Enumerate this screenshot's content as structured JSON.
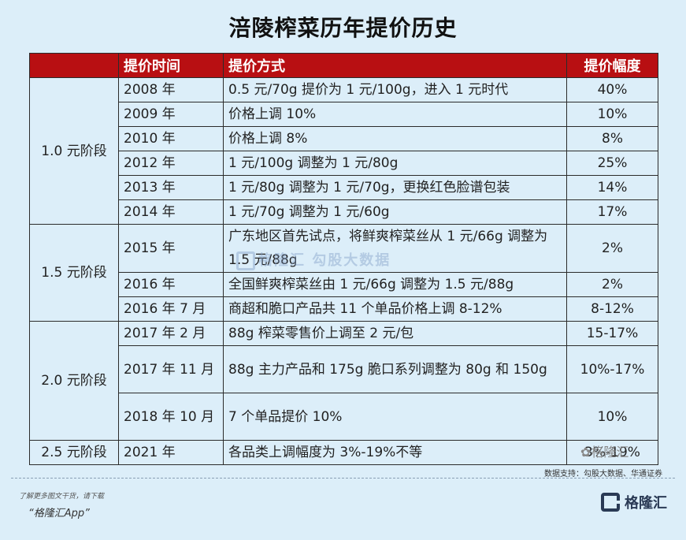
{
  "title": "涪陵榨菜历年提价历史",
  "headers": {
    "stage": "",
    "time": "提价时间",
    "method": "提价方式",
    "range": "提价幅度"
  },
  "stages": [
    {
      "label": "1.0 元阶段",
      "rows": [
        {
          "time": "2008 年",
          "method": "0.5 元/70g 提价为 1 元/100g，进入 1 元时代",
          "range": "40%"
        },
        {
          "time": "2009 年",
          "method": "价格上调 10%",
          "range": "10%"
        },
        {
          "time": "2010 年",
          "method": "价格上调 8%",
          "range": "8%"
        },
        {
          "time": "2012 年",
          "method": "1 元/100g 调整为 1 元/80g",
          "range": "25%"
        },
        {
          "time": "2013 年",
          "method": "1 元/80g 调整为 1 元/70g，更换红色脸谱包装",
          "range": "14%"
        },
        {
          "time": "2014 年",
          "method": "1 元/70g 调整为 1 元/60g",
          "range": "17%"
        }
      ]
    },
    {
      "label": "1.5 元阶段",
      "rows": [
        {
          "time": "2015 年",
          "method": "广东地区首先试点，将鲜爽榨菜丝从 1 元/66g 调整为 1.5 元/88g",
          "range": "2%"
        },
        {
          "time": "2016 年",
          "method": "全国鲜爽榨菜丝由 1 元/66g 调整为 1.5 元/88g",
          "range": "2%"
        },
        {
          "time": "2016 年 7 月",
          "method": "商超和脆口产品共 11 个单品价格上调 8-12%",
          "range": "8-12%"
        }
      ]
    },
    {
      "label": "2.0 元阶段",
      "rows": [
        {
          "time": "2017 年 2 月",
          "method": "88g 榨菜零售价上调至 2 元/包",
          "range": "15-17%"
        },
        {
          "time": "2017 年 11 月",
          "method": "88g 主力产品和 175g 脆口系列调整为 80g 和 150g",
          "range": "10%-17%"
        },
        {
          "time": "2018 年 10 月",
          "method": "7 个单品提价 10%",
          "range": "10%"
        }
      ]
    },
    {
      "label": "2.5 元阶段",
      "rows": [
        {
          "time": "2021 年",
          "method": "各品类上调幅度为 3%-19%不等",
          "range": "3%-19%"
        }
      ]
    }
  ],
  "watermark": "格隆汇 勾股大数据",
  "overlay_mark": "✿格隆汇",
  "source": "数据支持：勾股大数据、华通证券",
  "footer": {
    "note": "了解更多图文干货，请下载",
    "app": "“格隆汇App”",
    "brand": "格隆汇"
  }
}
